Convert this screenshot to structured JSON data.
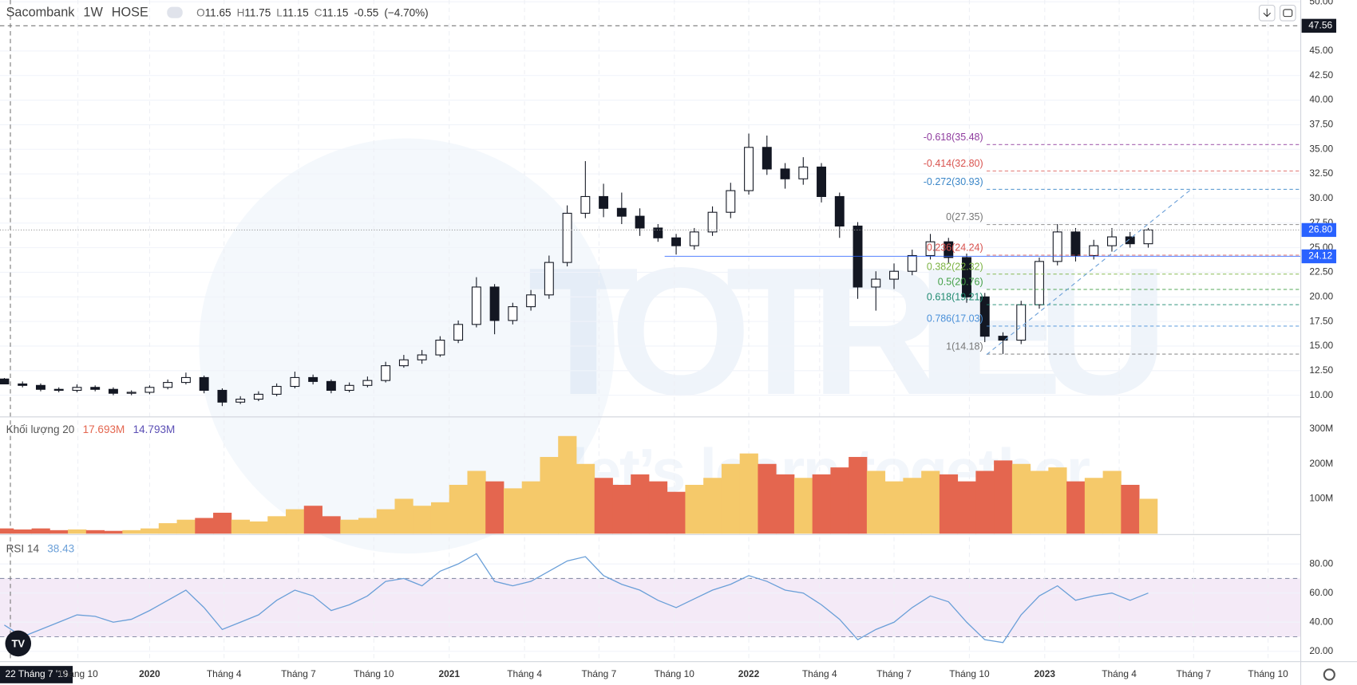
{
  "watermark": {
    "brand": "TOTRIEU",
    "slogan": "let’s learn together"
  },
  "chart_data": [
    {
      "type": "candlestick",
      "title": "Sacombank",
      "interval": "1W",
      "exchange": "HOSE",
      "header": {
        "open_label": "O",
        "open": 11.65,
        "high_label": "H",
        "high": 11.75,
        "low_label": "L",
        "low": 11.15,
        "close_label": "C",
        "close": 11.15,
        "change": -0.55,
        "change_pct": "(−4.70%)"
      },
      "up_color": "#ffffff",
      "down_color": "#131722",
      "open": [
        11.65,
        11.15,
        11.0,
        10.6,
        10.5,
        10.8,
        10.6,
        10.2,
        10.3,
        10.8,
        11.3,
        11.8,
        10.5,
        9.3,
        9.6,
        10.1,
        10.9,
        11.8,
        11.4,
        10.5,
        11.0,
        11.5,
        13.0,
        13.6,
        14.1,
        15.6,
        17.2,
        21.0,
        17.6,
        19.0,
        20.2,
        23.5,
        28.5,
        30.2,
        29.0,
        28.2,
        27.0,
        26.0,
        25.2,
        26.6,
        28.6,
        30.8,
        35.2,
        33.0,
        32.0,
        33.2,
        30.2,
        27.2,
        21.0,
        21.8,
        22.6,
        24.2,
        25.6,
        24.0,
        20.0,
        16.0,
        15.6,
        19.2,
        23.6,
        26.6,
        24.2,
        25.2,
        26.1,
        25.4
      ],
      "high": [
        11.75,
        11.4,
        11.2,
        10.8,
        11.1,
        11.0,
        10.8,
        10.5,
        11.0,
        11.6,
        12.3,
        12.0,
        10.7,
        9.9,
        10.4,
        11.2,
        12.4,
        12.1,
        11.6,
        11.3,
        11.9,
        13.4,
        14.1,
        14.6,
        16.0,
        17.6,
        22.0,
        21.3,
        19.4,
        20.7,
        24.2,
        29.3,
        33.8,
        31.5,
        30.6,
        29.0,
        27.4,
        26.4,
        27.0,
        29.2,
        31.6,
        36.6,
        36.4,
        33.6,
        34.2,
        33.6,
        30.6,
        27.6,
        22.6,
        23.4,
        24.8,
        26.4,
        26.0,
        24.4,
        20.4,
        16.4,
        19.6,
        24.0,
        27.4,
        27.0,
        25.8,
        27.0,
        26.6,
        27.0
      ],
      "low": [
        11.15,
        10.8,
        10.4,
        10.3,
        10.3,
        10.4,
        10.0,
        10.0,
        10.1,
        10.6,
        11.1,
        10.2,
        8.9,
        9.1,
        9.4,
        9.9,
        10.7,
        11.1,
        10.2,
        10.3,
        10.8,
        11.3,
        12.8,
        13.2,
        13.9,
        15.3,
        16.9,
        16.2,
        17.2,
        18.6,
        19.8,
        23.1,
        28.0,
        28.1,
        27.4,
        26.2,
        25.6,
        24.3,
        24.8,
        26.2,
        28.0,
        30.4,
        32.4,
        31.0,
        31.4,
        29.6,
        26.0,
        19.8,
        18.6,
        20.8,
        22.2,
        23.8,
        23.4,
        19.4,
        15.4,
        14.2,
        15.2,
        18.8,
        23.2,
        23.6,
        23.8,
        24.6,
        25.0,
        25.0
      ],
      "close": [
        11.15,
        11.0,
        10.6,
        10.5,
        10.8,
        10.6,
        10.2,
        10.3,
        10.8,
        11.3,
        11.8,
        10.5,
        9.3,
        9.6,
        10.1,
        10.9,
        11.8,
        11.4,
        10.5,
        11.0,
        11.5,
        13.0,
        13.6,
        14.1,
        15.6,
        17.2,
        21.0,
        17.6,
        19.0,
        20.2,
        23.5,
        28.5,
        30.2,
        29.0,
        28.2,
        27.0,
        26.0,
        25.2,
        26.6,
        28.6,
        30.8,
        35.2,
        33.0,
        32.0,
        33.2,
        30.2,
        27.2,
        21.0,
        21.8,
        22.6,
        24.2,
        25.6,
        24.0,
        20.0,
        16.0,
        15.6,
        19.2,
        23.6,
        26.6,
        24.2,
        25.2,
        26.1,
        25.4,
        26.8
      ],
      "xlim": [
        -0.24,
        71.4
      ],
      "ylim": [
        7.8,
        50.18
      ],
      "grid": true,
      "yticks": [
        {
          "value": 10,
          "label": "10.00"
        },
        {
          "value": 12.5,
          "label": "12.50"
        },
        {
          "value": 15,
          "label": "15.00"
        },
        {
          "value": 17.5,
          "label": "17.50"
        },
        {
          "value": 20,
          "label": "20.00"
        },
        {
          "value": 22.5,
          "label": "22.50"
        },
        {
          "value": 25,
          "label": "25.00"
        },
        {
          "value": 27.5,
          "label": "27.50"
        },
        {
          "value": 30,
          "label": "30.00"
        },
        {
          "value": 32.5,
          "label": "32.50"
        },
        {
          "value": 35,
          "label": "35.00"
        },
        {
          "value": 37.5,
          "label": "37.50"
        },
        {
          "value": 40,
          "label": "40.00"
        },
        {
          "value": 42.5,
          "label": "42.50"
        },
        {
          "value": 45,
          "label": "45.00"
        },
        {
          "value": 50,
          "label": "50.00"
        }
      ],
      "fib_levels": [
        {
          "label": "-0.618(35.48)",
          "value": 35.48,
          "color": "#8e3b9e"
        },
        {
          "label": "-0.414(32.80)",
          "value": 32.8,
          "color": "#d9534f"
        },
        {
          "label": "-0.272(30.93)",
          "value": 30.93,
          "color": "#3a86c8"
        },
        {
          "label": "0(27.35)",
          "value": 27.35,
          "color": "#777777"
        },
        {
          "label": "0.236(24.24)",
          "value": 24.24,
          "color": "#d9534f"
        },
        {
          "label": "0.382(22.32)",
          "value": 22.32,
          "color": "#7cb342"
        },
        {
          "label": "0.5(20.76)",
          "value": 20.76,
          "color": "#43a047"
        },
        {
          "label": "0.618(19.21)",
          "value": 19.21,
          "color": "#1f8a70"
        },
        {
          "label": "0.786(17.03)",
          "value": 17.03,
          "color": "#4a90d9"
        },
        {
          "label": "1(14.18)",
          "value": 14.18,
          "color": "#777777"
        }
      ],
      "last_price": {
        "value": 26.8,
        "label": "26.80",
        "color": "#2962ff"
      },
      "support_line": {
        "value": 24.12,
        "label": "24.12",
        "color": "#2962ff"
      },
      "crosshair": {
        "value": 47.56,
        "label": "47.56",
        "date": "22 Tháng 7 '19"
      }
    },
    {
      "type": "volume",
      "label": "Khối lượng 20",
      "legend_values": [
        "17.693M",
        "14.793M"
      ],
      "up_color": "#f5c96a",
      "down_color": "#e4664f",
      "values": [
        15,
        12,
        15,
        10,
        12,
        10,
        8,
        10,
        15,
        30,
        40,
        45,
        60,
        40,
        35,
        50,
        70,
        80,
        50,
        40,
        45,
        70,
        100,
        80,
        90,
        140,
        180,
        150,
        130,
        150,
        220,
        280,
        200,
        160,
        140,
        170,
        150,
        120,
        140,
        160,
        200,
        230,
        200,
        170,
        160,
        170,
        190,
        220,
        180,
        150,
        160,
        180,
        170,
        150,
        180,
        210,
        200,
        180,
        190,
        150,
        160,
        180,
        140,
        100
      ],
      "xlim": [
        -0.24,
        71.4
      ],
      "ylim": [
        0,
        330
      ],
      "yticks": [
        {
          "value": 100,
          "label": "100M"
        },
        {
          "value": 200,
          "label": "200M"
        },
        {
          "value": 300,
          "label": "300M"
        }
      ]
    },
    {
      "type": "line",
      "label": "RSI 14",
      "legend_value": 38.43,
      "color": "#6a9fd8",
      "band": [
        30,
        70
      ],
      "band_color": "#f4eaf7",
      "values": [
        38,
        30,
        35,
        40,
        45,
        44,
        40,
        42,
        48,
        55,
        62,
        50,
        35,
        40,
        45,
        55,
        62,
        58,
        48,
        52,
        58,
        68,
        70,
        65,
        75,
        80,
        87,
        68,
        65,
        68,
        75,
        82,
        85,
        72,
        66,
        62,
        55,
        50,
        56,
        62,
        66,
        72,
        68,
        62,
        60,
        52,
        42,
        28,
        35,
        40,
        50,
        58,
        54,
        40,
        28,
        26,
        45,
        58,
        65,
        55,
        58,
        60,
        55,
        60
      ],
      "xlim": [
        -0.24,
        71.4
      ],
      "ylim": [
        12.9,
        99
      ],
      "yticks": [
        {
          "value": 20,
          "label": "20.00"
        },
        {
          "value": 40,
          "label": "40.00"
        },
        {
          "value": 60,
          "label": "60.00"
        },
        {
          "value": 80,
          "label": "80.00"
        }
      ],
      "xticks": [
        {
          "value": 4.05,
          "label": "Tháng 10"
        },
        {
          "value": 8.0,
          "label": "2020"
        },
        {
          "value": 12.1,
          "label": "Tháng 4"
        },
        {
          "value": 16.2,
          "label": "Tháng 7"
        },
        {
          "value": 20.35,
          "label": "Tháng 10"
        },
        {
          "value": 24.5,
          "label": "2021"
        },
        {
          "value": 28.65,
          "label": "Tháng 4"
        },
        {
          "value": 32.75,
          "label": "Tháng 7"
        },
        {
          "value": 36.9,
          "label": "Tháng 10"
        },
        {
          "value": 41.0,
          "label": "2022"
        },
        {
          "value": 44.9,
          "label": "Tháng 4"
        },
        {
          "value": 49.0,
          "label": "Tháng 7"
        },
        {
          "value": 53.15,
          "label": "Tháng 10"
        },
        {
          "value": 57.3,
          "label": "2023"
        },
        {
          "value": 61.4,
          "label": "Tháng 4"
        },
        {
          "value": 65.5,
          "label": "Tháng 7"
        },
        {
          "value": 69.6,
          "label": "Tháng 10"
        }
      ]
    }
  ]
}
